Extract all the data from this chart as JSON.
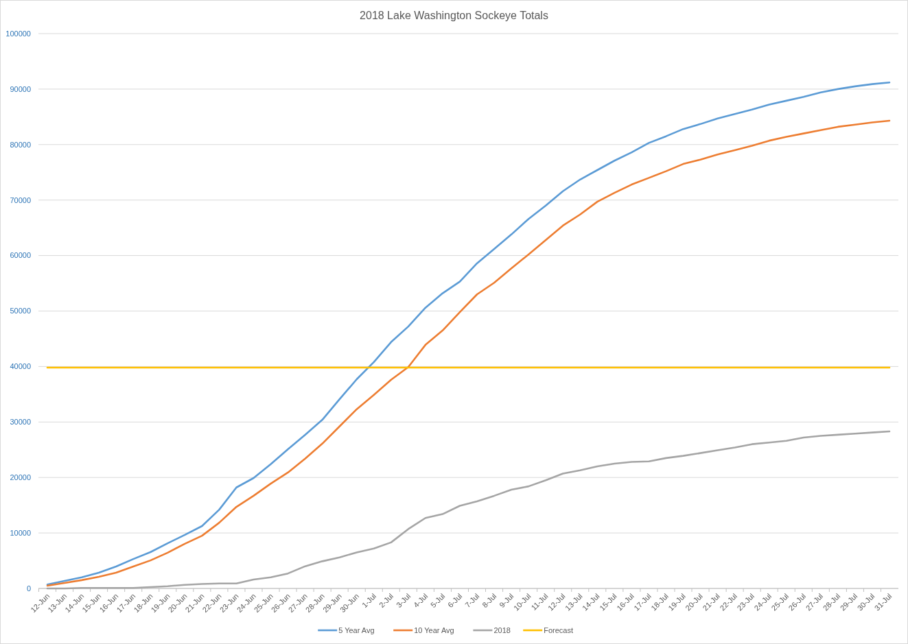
{
  "chart_data": {
    "type": "line",
    "title": "2018 Lake Washington Sockeye Totals",
    "categories": [
      "12-Jun",
      "13-Jun",
      "14-Jun",
      "15-Jun",
      "16-Jun",
      "17-Jun",
      "18-Jun",
      "19-Jun",
      "20-Jun",
      "21-Jun",
      "22-Jun",
      "23-Jun",
      "24-Jun",
      "25-Jun",
      "26-Jun",
      "27-Jun",
      "28-Jun",
      "29-Jun",
      "30-Jun",
      "1-Jul",
      "2-Jul",
      "3-Jul",
      "4-Jul",
      "5-Jul",
      "6-Jul",
      "7-Jul",
      "8-Jul",
      "9-Jul",
      "10-Jul",
      "11-Jul",
      "12-Jul",
      "13-Jul",
      "14-Jul",
      "15-Jul",
      "16-Jul",
      "17-Jul",
      "18-Jul",
      "19-Jul",
      "20-Jul",
      "21-Jul",
      "22-Jul",
      "23-Jul",
      "24-Jul",
      "25-Jul",
      "26-Jul",
      "27-Jul",
      "28-Jul",
      "29-Jul",
      "30-Jul",
      "31-Jul"
    ],
    "series": [
      {
        "name": "5 Year Avg",
        "color": "#5b9bd5",
        "values": [
          700,
          1350,
          2000,
          2850,
          3950,
          5300,
          6550,
          8150,
          9650,
          11250,
          14200,
          18200,
          19900,
          22400,
          25100,
          27700,
          30400,
          34100,
          37700,
          40800,
          44400,
          47200,
          50600,
          53200,
          55300,
          58600,
          61200,
          63800,
          66600,
          69000,
          71600,
          73700,
          75400,
          77100,
          78600,
          80300,
          81500,
          82800,
          83700,
          84700,
          85500,
          86300,
          87200,
          87900,
          88600,
          89400,
          90000,
          90500,
          90900,
          91200
        ]
      },
      {
        "name": "10 Year Avg",
        "color": "#ed7d31",
        "values": [
          500,
          1000,
          1500,
          2100,
          2850,
          3950,
          5050,
          6450,
          8050,
          9500,
          11850,
          14700,
          16700,
          18900,
          20900,
          23400,
          26100,
          29200,
          32300,
          34900,
          37600,
          39900,
          43900,
          46500,
          49800,
          53000,
          55100,
          57700,
          60200,
          62800,
          65400,
          67400,
          69700,
          71300,
          72800,
          74000,
          75200,
          76500,
          77300,
          78200,
          79000,
          79800,
          80700,
          81400,
          82000,
          82600,
          83200,
          83600,
          84000,
          84300
        ]
      },
      {
        "name": "2018",
        "color": "#a5a5a5",
        "values": [
          0,
          0,
          100,
          100,
          100,
          100,
          250,
          400,
          650,
          800,
          900,
          900,
          1600,
          2000,
          2700,
          4000,
          4900,
          5600,
          6500,
          7200,
          8300,
          10700,
          12700,
          13400,
          14900,
          15700,
          16700,
          17800,
          18400,
          19500,
          20700,
          21300,
          22000,
          22500,
          22800,
          22900,
          23500,
          23900,
          24400,
          24900,
          25400,
          26000,
          26300,
          26600,
          27200,
          27500,
          27700,
          27900,
          28100,
          28300
        ]
      },
      {
        "name": "Forecast",
        "color": "#ffc000",
        "values": [
          39800,
          39800,
          39800,
          39800,
          39800,
          39800,
          39800,
          39800,
          39800,
          39800,
          39800,
          39800,
          39800,
          39800,
          39800,
          39800,
          39800,
          39800,
          39800,
          39800,
          39800,
          39800,
          39800,
          39800,
          39800,
          39800,
          39800,
          39800,
          39800,
          39800,
          39800,
          39800,
          39800,
          39800,
          39800,
          39800,
          39800,
          39800,
          39800,
          39800,
          39800,
          39800,
          39800,
          39800,
          39800,
          39800,
          39800,
          39800,
          39800,
          39800
        ]
      }
    ],
    "ylim": [
      0,
      100000
    ],
    "yticks": [
      0,
      10000,
      20000,
      30000,
      40000,
      50000,
      60000,
      70000,
      80000,
      90000,
      100000
    ],
    "grid": "y",
    "legend": "bottom",
    "marker": "none",
    "line_style": "solid"
  }
}
